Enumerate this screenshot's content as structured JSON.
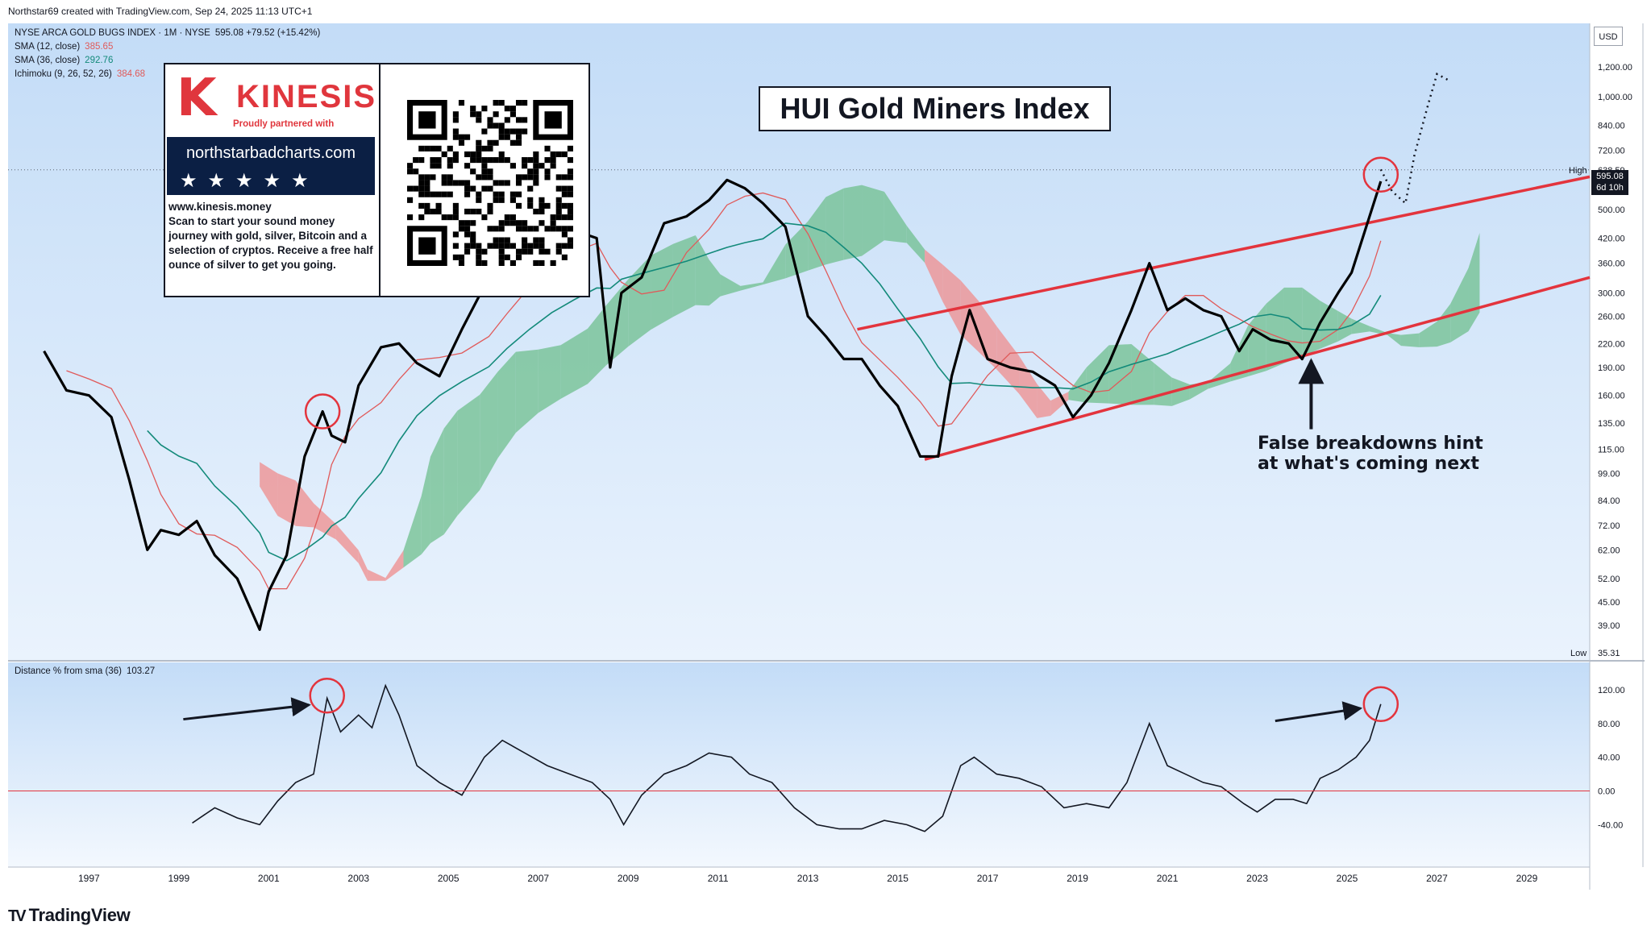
{
  "credit": "Northstar69 created with TradingView.com, Sep 24, 2025 11:13 UTC+1",
  "legend": {
    "main": {
      "label": "NYSE ARCA GOLD BUGS INDEX · 1M · NYSE",
      "value": "595.08  +79.52 (+15.42%)"
    },
    "sma12": {
      "label": "SMA (12, close)",
      "value": "385.65",
      "color": "#e05a5a"
    },
    "sma36": {
      "label": "SMA (36, close)",
      "value": "292.76",
      "color": "#138a7a"
    },
    "ichimoku": {
      "label": "Ichimoku (9, 26, 52, 26)",
      "value": "384.68",
      "color": "#e05a5a"
    },
    "osc": {
      "label": "Distance % from sma (36)",
      "value": "103.27"
    }
  },
  "ad": {
    "brand_k": "K",
    "brand": "KINESIS",
    "tagline": "Proudly partnered with",
    "site": "northstarbadcharts.com",
    "stars": "★★★★★",
    "text": "www.kinesis.money\nScan to start your sound money journey with gold, silver, Bitcoin and a selection of cryptos. Receive a free half ounce of silver to get you going."
  },
  "title": "HUI Gold Miners Index",
  "annotation": [
    "False breakdowns hint",
    "at what's coming next"
  ],
  "price_tag": [
    "595.08",
    "6d 10h"
  ],
  "currency": "USD",
  "branding": "TradingView",
  "colors": {
    "price_line": "#000000",
    "sma12": "#e05a5a",
    "sma36": "#138a7a",
    "cloud_bull": "#6fbf8e",
    "cloud_bear": "#ef8c8c",
    "trend_lines": "#e3343d",
    "pane_bg_top": "#c3dcf7",
    "pane_bg_bottom": "#eaf3fd"
  },
  "chart_data": [
    {
      "type": "line",
      "scale": "log",
      "title": "HUI Gold Miners Index",
      "y_ticks": [
        "1,200.00",
        "1,000.00",
        "840.00",
        "720.00",
        "600.00",
        "500.00",
        "420.00",
        "360.00",
        "300.00",
        "260.00",
        "220.00",
        "190.00",
        "160.00",
        "135.00",
        "115.00",
        "99.00",
        "84.00",
        "72.00",
        "62.00",
        "52.00",
        "45.00",
        "39.00"
      ],
      "x_ticks": [
        "1997",
        "1999",
        "2001",
        "2003",
        "2005",
        "2007",
        "2009",
        "2011",
        "2013",
        "2015",
        "2017",
        "2019",
        "2021",
        "2023",
        "2025",
        "2027",
        "2029"
      ],
      "high": {
        "label": "High",
        "value": "638.59"
      },
      "low": {
        "label": "Low",
        "value": "35.31"
      },
      "ylim": [
        35,
        1300
      ],
      "xlim": [
        1995.2,
        2030.4
      ],
      "series": [
        {
          "name": "HUI",
          "x": [
            1996.0,
            1996.5,
            1997.0,
            1997.5,
            1997.9,
            1998.3,
            1998.6,
            1999.0,
            1999.4,
            1999.8,
            2000.3,
            2000.8,
            2001.0,
            2001.4,
            2001.8,
            2002.2,
            2002.4,
            2002.7,
            2003.0,
            2003.5,
            2003.9,
            2004.3,
            2004.8,
            2005.3,
            2005.9,
            2006.3,
            2006.8,
            2007.3,
            2007.8,
            2008.3,
            2008.6,
            2008.85,
            2009.3,
            2009.8,
            2010.3,
            2010.8,
            2011.2,
            2011.6,
            2012.0,
            2012.5,
            2013.0,
            2013.4,
            2013.8,
            2014.2,
            2014.6,
            2015.0,
            2015.5,
            2015.9,
            2016.2,
            2016.6,
            2017.0,
            2017.5,
            2018.0,
            2018.5,
            2018.9,
            2019.3,
            2019.7,
            2020.2,
            2020.6,
            2021.0,
            2021.4,
            2021.8,
            2022.2,
            2022.6,
            2022.9,
            2023.3,
            2023.7,
            2024.0,
            2024.4,
            2024.8,
            2025.1,
            2025.5,
            2025.75
          ],
          "values": [
            210,
            165,
            160,
            140,
            95,
            62,
            70,
            68,
            74,
            60,
            52,
            38,
            48,
            60,
            110,
            145,
            125,
            120,
            170,
            215,
            220,
            195,
            180,
            240,
            330,
            340,
            345,
            430,
            440,
            420,
            190,
            300,
            330,
            460,
            480,
            530,
            600,
            570,
            520,
            450,
            260,
            230,
            200,
            200,
            170,
            150,
            110,
            110,
            180,
            270,
            200,
            190,
            185,
            170,
            140,
            160,
            195,
            270,
            360,
            270,
            290,
            270,
            260,
            210,
            240,
            225,
            220,
            200,
            250,
            300,
            340,
            480,
            595
          ]
        },
        {
          "name": "Projection",
          "x": [
            2025.75,
            2026.0,
            2026.3,
            2026.5,
            2026.8,
            2027.0,
            2027.3
          ],
          "values": [
            640,
            560,
            520,
            700,
            950,
            1150,
            1100
          ]
        }
      ]
    },
    {
      "type": "line",
      "title": "Distance % from sma (36)",
      "y_ticks": [
        "120.00",
        "80.00",
        "40.00",
        "0.00",
        "-40.00"
      ],
      "ylim": [
        -75,
        140
      ],
      "xlim": [
        1995.2,
        2030.4
      ],
      "series": [
        {
          "name": "Distance % from sma (36)",
          "x": [
            1999.3,
            1999.8,
            2000.3,
            2000.8,
            2001.2,
            2001.6,
            2002.0,
            2002.3,
            2002.6,
            2003.0,
            2003.3,
            2003.6,
            2003.9,
            2004.3,
            2004.8,
            2005.3,
            2005.8,
            2006.2,
            2006.7,
            2007.2,
            2007.7,
            2008.2,
            2008.6,
            2008.9,
            2009.3,
            2009.8,
            2010.3,
            2010.8,
            2011.3,
            2011.7,
            2012.2,
            2012.7,
            2013.2,
            2013.7,
            2014.2,
            2014.7,
            2015.2,
            2015.6,
            2016.0,
            2016.4,
            2016.7,
            2017.2,
            2017.7,
            2018.2,
            2018.7,
            2019.2,
            2019.7,
            2020.1,
            2020.6,
            2021.0,
            2021.4,
            2021.8,
            2022.2,
            2022.7,
            2023.0,
            2023.4,
            2023.8,
            2024.1,
            2024.4,
            2024.8,
            2025.2,
            2025.5,
            2025.75
          ],
          "values": [
            -38,
            -20,
            -32,
            -40,
            -12,
            10,
            20,
            110,
            70,
            90,
            75,
            125,
            90,
            30,
            10,
            -5,
            40,
            60,
            45,
            30,
            20,
            10,
            -10,
            -40,
            -5,
            20,
            30,
            45,
            40,
            20,
            10,
            -20,
            -40,
            -45,
            -45,
            -35,
            -40,
            -48,
            -30,
            30,
            40,
            20,
            15,
            5,
            -20,
            -15,
            -20,
            10,
            80,
            30,
            20,
            10,
            5,
            -15,
            -25,
            -10,
            -10,
            -15,
            15,
            25,
            40,
            60,
            103
          ]
        }
      ]
    }
  ]
}
